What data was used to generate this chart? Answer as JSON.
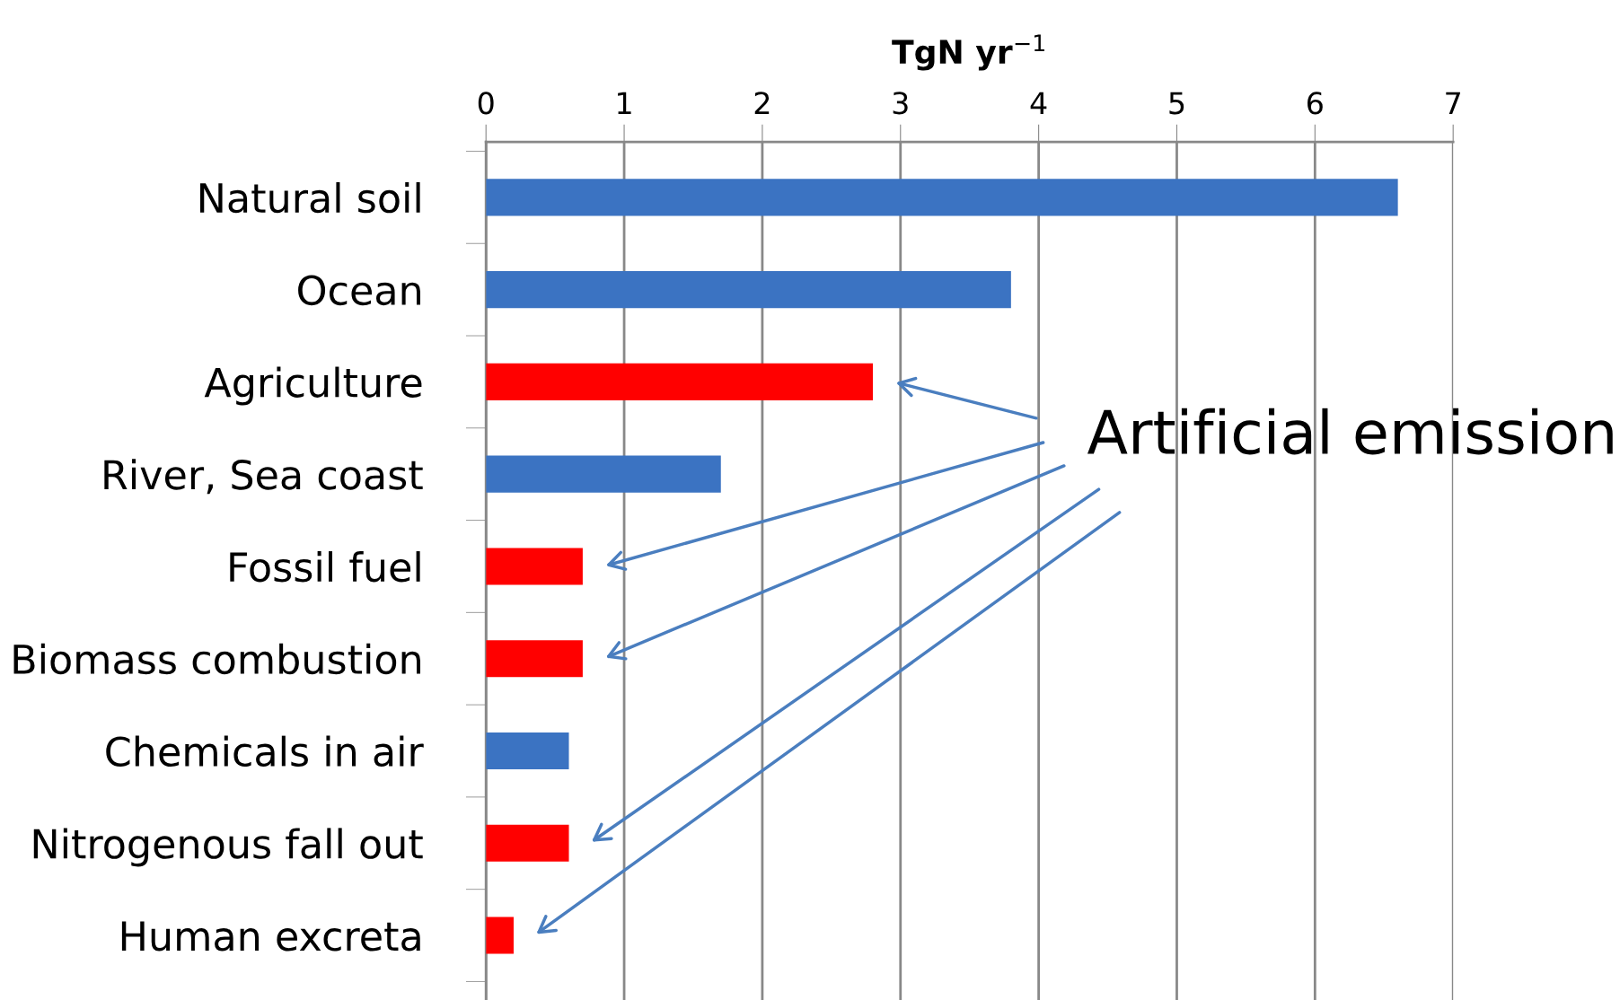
{
  "chart_data": {
    "type": "bar",
    "orientation": "horizontal",
    "xlabel": "TgN yr$^{−1}$",
    "categories": [
      "Natural soil",
      "Ocean",
      "Agriculture",
      "River, Sea coast",
      "Fossil fuel",
      "Biomass combustion",
      "Chemicals in air",
      "Nitrogenous fall out",
      "Human excreta"
    ],
    "values": [
      6.6,
      3.8,
      2.8,
      1.7,
      0.7,
      0.7,
      0.6,
      0.6,
      0.2
    ],
    "colors": [
      "#3b73c2",
      "#3b73c2",
      "#ff0000",
      "#3b73c2",
      "#ff0000",
      "#ff0000",
      "#3b73c2",
      "#ff0000",
      "#ff0000"
    ],
    "xlim": [
      0,
      7
    ],
    "xticks": [
      0,
      1,
      2,
      3,
      4,
      5,
      6,
      7
    ],
    "grid": "x",
    "annotations": [
      "Artificial emission"
    ]
  }
}
